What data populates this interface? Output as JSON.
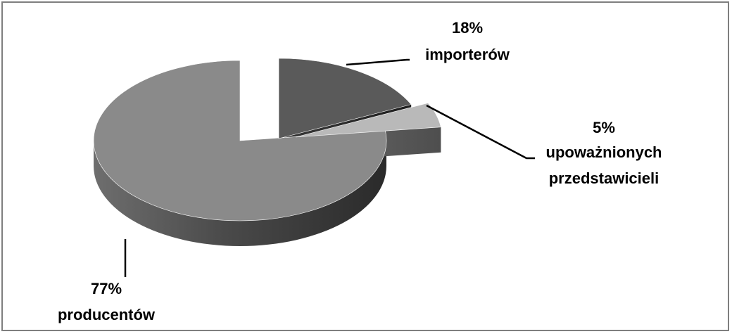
{
  "chart_data": {
    "type": "pie",
    "style": "3d-exploded",
    "legend": "none",
    "slices": [
      {
        "percent_label": "18%",
        "category": "importerów",
        "value": 18,
        "color": "#5a5a5a"
      },
      {
        "percent_label": "5%",
        "category_lines": [
          "upoważnionych",
          "przedstawicieli"
        ],
        "value": 5,
        "color": "#b9b9b9"
      },
      {
        "percent_label": "77%",
        "category": "producentów",
        "value": 77,
        "color": "#8a8a8a"
      }
    ]
  }
}
